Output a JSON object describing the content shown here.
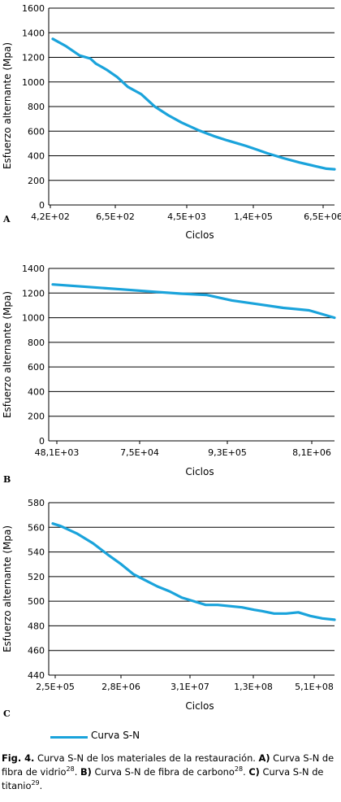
{
  "legend": {
    "label": "Curva S-N",
    "color": "#1aa3db"
  },
  "caption": {
    "fig": "Fig. 4.",
    "part1": " Curva S-N de los materiales de la restauración. ",
    "a_letter": "A)",
    "part2": " Curva S-N de fibra de vidrio",
    "ref_a": "28",
    "part3": ". ",
    "b_letter": "B)",
    "part4": " Curva S-N de fibra de carbono",
    "ref_b": "28",
    "part5": ". ",
    "c_letter": "C)",
    "part6": " Curva S-N de titanio",
    "ref_c": "29",
    "part7": "."
  },
  "chart_data": [
    {
      "type": "line",
      "panel": "A",
      "xlabel": "Ciclos",
      "ylabel": "Esfuerzo alternante (Mpa)",
      "ylim": [
        0,
        1600
      ],
      "yticks": [
        0,
        200,
        400,
        600,
        800,
        1000,
        1200,
        1400,
        1600
      ],
      "xticks": [
        "4,2E+02",
        "6,5E+02",
        "4,5E+03",
        "1,4E+05",
        "6,5E+06"
      ],
      "grid": true,
      "series": [
        {
          "name": "Curva S-N",
          "x": [
            0,
            0.25,
            0.5,
            0.7,
            0.8,
            1.0,
            1.2,
            1.4,
            1.65,
            1.9,
            2.15,
            2.4,
            2.7,
            3.0,
            3.25,
            3.45,
            3.6,
            3.8,
            4.0,
            4.3,
            4.6,
            4.9,
            5.1,
            5.25
          ],
          "y": [
            1350,
            1290,
            1215,
            1190,
            1150,
            1100,
            1040,
            960,
            900,
            800,
            730,
            670,
            610,
            560,
            525,
            500,
            480,
            450,
            420,
            380,
            345,
            315,
            295,
            290
          ]
        }
      ]
    },
    {
      "type": "line",
      "panel": "B",
      "xlabel": "Ciclos",
      "ylabel": "Esfuerzo alternante (Mpa)",
      "ylim": [
        0,
        1400
      ],
      "yticks": [
        0,
        200,
        400,
        600,
        800,
        1000,
        1200,
        1400
      ],
      "xticks": [
        "48,1E+03",
        "7,5E+04",
        "9,3E+05",
        "8,1E+06"
      ],
      "grid": true,
      "series": [
        {
          "name": "Curva S-N",
          "x": [
            0,
            0.4,
            0.8,
            1.2,
            1.5,
            1.8,
            2.1,
            2.4,
            2.7,
            3.0,
            3.3
          ],
          "y": [
            1270,
            1250,
            1230,
            1210,
            1195,
            1185,
            1140,
            1110,
            1080,
            1060,
            1000
          ]
        }
      ]
    },
    {
      "type": "line",
      "panel": "C",
      "xlabel": "Ciclos",
      "ylabel": "Esfuerzo alternante (Mpa)",
      "ylim": [
        440,
        580
      ],
      "yticks": [
        440,
        460,
        480,
        500,
        520,
        540,
        560,
        580
      ],
      "xticks": [
        "2,5E+05",
        "2,8E+06",
        "3,1E+07",
        "1,3E+08",
        "5,1E+08"
      ],
      "grid": true,
      "series": [
        {
          "name": "Curva S-N",
          "x": [
            0,
            0.1,
            0.3,
            0.5,
            0.7,
            0.85,
            1.0,
            1.15,
            1.3,
            1.45,
            1.6,
            1.75,
            1.9,
            2.05,
            2.2,
            2.35,
            2.5,
            2.6,
            2.75,
            2.9,
            3.05,
            3.2,
            3.35,
            3.5
          ],
          "y": [
            563,
            561,
            555,
            547,
            537,
            530,
            522,
            517,
            512,
            508,
            503,
            500,
            497,
            497,
            496,
            495,
            493,
            492,
            490,
            490,
            491,
            488,
            486,
            485
          ]
        }
      ]
    }
  ]
}
